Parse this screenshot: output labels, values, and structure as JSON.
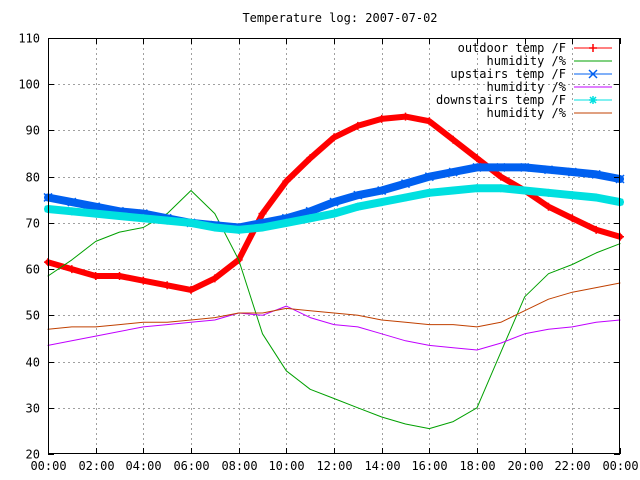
{
  "chart_data": {
    "type": "line",
    "title": "Temperature log: 2007-07-02",
    "xlabel": "",
    "ylabel": "",
    "xlim": [
      0,
      24
    ],
    "ylim": [
      20,
      110
    ],
    "grid": true,
    "legend_placement": "top-right",
    "x_tick_labels": [
      "00:00",
      "02:00",
      "04:00",
      "06:00",
      "08:00",
      "10:00",
      "12:00",
      "14:00",
      "16:00",
      "18:00",
      "20:00",
      "22:00",
      "00:00"
    ],
    "y_ticks": [
      20,
      30,
      40,
      50,
      60,
      70,
      80,
      90,
      100,
      110
    ],
    "x_hours": [
      0,
      1,
      2,
      3,
      4,
      5,
      6,
      7,
      8,
      9,
      10,
      11,
      12,
      13,
      14,
      15,
      16,
      17,
      18,
      19,
      20,
      21,
      22,
      23,
      24
    ],
    "series": [
      {
        "name": "outdoor temp /F",
        "color": "#ff0000",
        "marker": "plus",
        "thick": 6,
        "values": [
          61.5,
          60,
          58.5,
          58.5,
          57.5,
          56.5,
          55.5,
          58,
          62,
          72,
          79,
          84,
          88.5,
          91,
          92.5,
          93,
          92,
          88,
          84,
          80,
          77,
          73.5,
          71,
          68.5,
          67
        ]
      },
      {
        "name": "humidity /%",
        "color": "#00a000",
        "marker": "none",
        "thick": 1,
        "values": [
          58.5,
          62,
          66,
          68,
          69,
          72,
          77,
          72,
          62,
          46,
          38,
          34,
          32,
          30,
          28,
          26.5,
          25.5,
          27,
          30,
          42,
          54,
          59,
          61,
          63.5,
          65.5
        ]
      },
      {
        "name": "upstairs temp /F",
        "color": "#0060f0",
        "marker": "x",
        "thick": 8,
        "values": [
          75.5,
          74.5,
          73.5,
          72.5,
          72,
          71,
          70,
          69.5,
          69,
          70,
          71,
          72.5,
          74.5,
          76,
          77,
          78.5,
          80,
          81,
          82,
          82,
          82,
          81.5,
          81,
          80.5,
          79.5
        ]
      },
      {
        "name": "humidity /%",
        "color": "#c000ff",
        "marker": "none",
        "thick": 1,
        "values": [
          43.5,
          44.5,
          45.5,
          46.5,
          47.5,
          48,
          48.5,
          49,
          50.5,
          50,
          52,
          49.5,
          48,
          47.5,
          46,
          44.5,
          43.5,
          43,
          42.5,
          44,
          46,
          47,
          47.5,
          48.5,
          49
        ]
      },
      {
        "name": "downstairs temp /F",
        "color": "#00e0e0",
        "marker": "star",
        "thick": 8,
        "values": [
          73,
          72.5,
          72,
          71.5,
          71,
          70.5,
          70,
          69,
          68.5,
          69,
          70,
          71,
          72,
          73.5,
          74.5,
          75.5,
          76.5,
          77,
          77.5,
          77.5,
          77,
          76.5,
          76,
          75.5,
          74.5
        ]
      },
      {
        "name": "humidity /%",
        "color": "#c04000",
        "marker": "none",
        "thick": 1,
        "values": [
          47,
          47.5,
          47.5,
          48,
          48.5,
          48.5,
          49,
          49.5,
          50.5,
          50.5,
          51.5,
          51,
          50.5,
          50,
          49,
          48.5,
          48,
          48,
          47.5,
          48.5,
          51,
          53.5,
          55,
          56,
          57
        ]
      }
    ]
  }
}
